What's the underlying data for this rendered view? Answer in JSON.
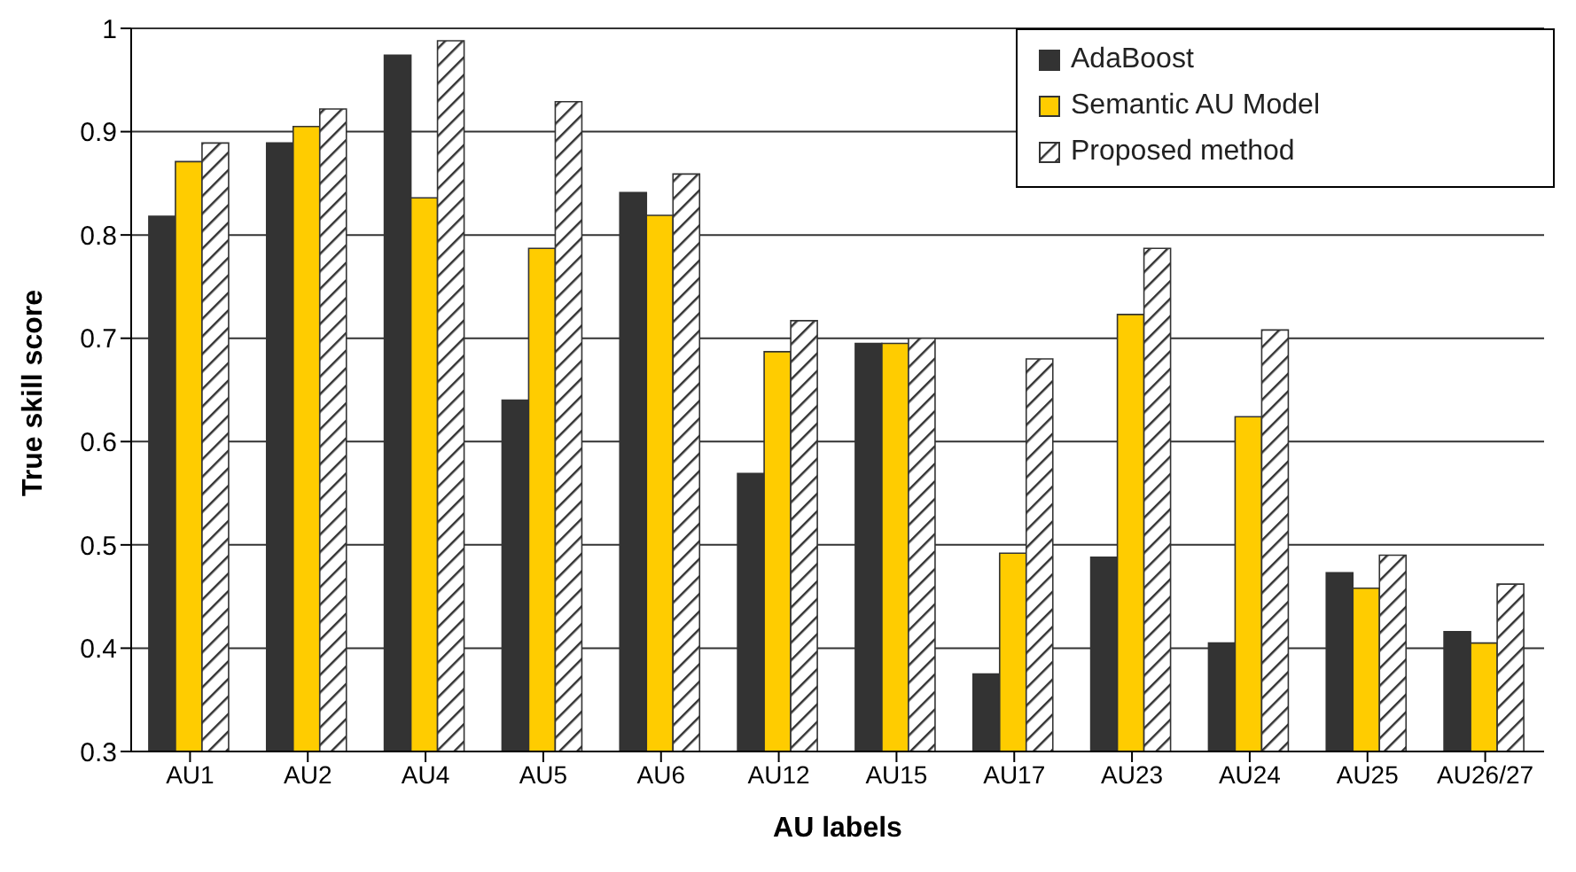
{
  "chart_data": {
    "type": "bar",
    "xlabel": "AU labels",
    "ylabel": "True skill score",
    "categories": [
      "AU1",
      "AU2",
      "AU4",
      "AU5",
      "AU6",
      "AU12",
      "AU15",
      "AU17",
      "AU23",
      "AU24",
      "AU25",
      "AU26/27"
    ],
    "series": [
      {
        "name": "AdaBoost",
        "color": "#333333",
        "values": [
          0.818,
          0.889,
          0.974,
          0.64,
          0.841,
          0.569,
          0.695,
          0.375,
          0.488,
          0.405,
          0.473,
          0.416
        ]
      },
      {
        "name": "Semantic AU Model",
        "color": "#ffcc00",
        "values": [
          0.871,
          0.905,
          0.836,
          0.787,
          0.819,
          0.687,
          0.695,
          0.492,
          0.723,
          0.624,
          0.458,
          0.405
        ]
      },
      {
        "name": "Proposed method",
        "color": "#333333",
        "values": [
          0.889,
          0.922,
          0.988,
          0.929,
          0.859,
          0.717,
          0.7,
          0.68,
          0.787,
          0.708,
          0.49,
          0.462
        ]
      }
    ],
    "ylim": [
      0.3,
      1
    ],
    "yticks": [
      0.3,
      0.4,
      0.5,
      0.6,
      0.7,
      0.8,
      0.9,
      1
    ],
    "grid": "y",
    "legend": "top right"
  }
}
